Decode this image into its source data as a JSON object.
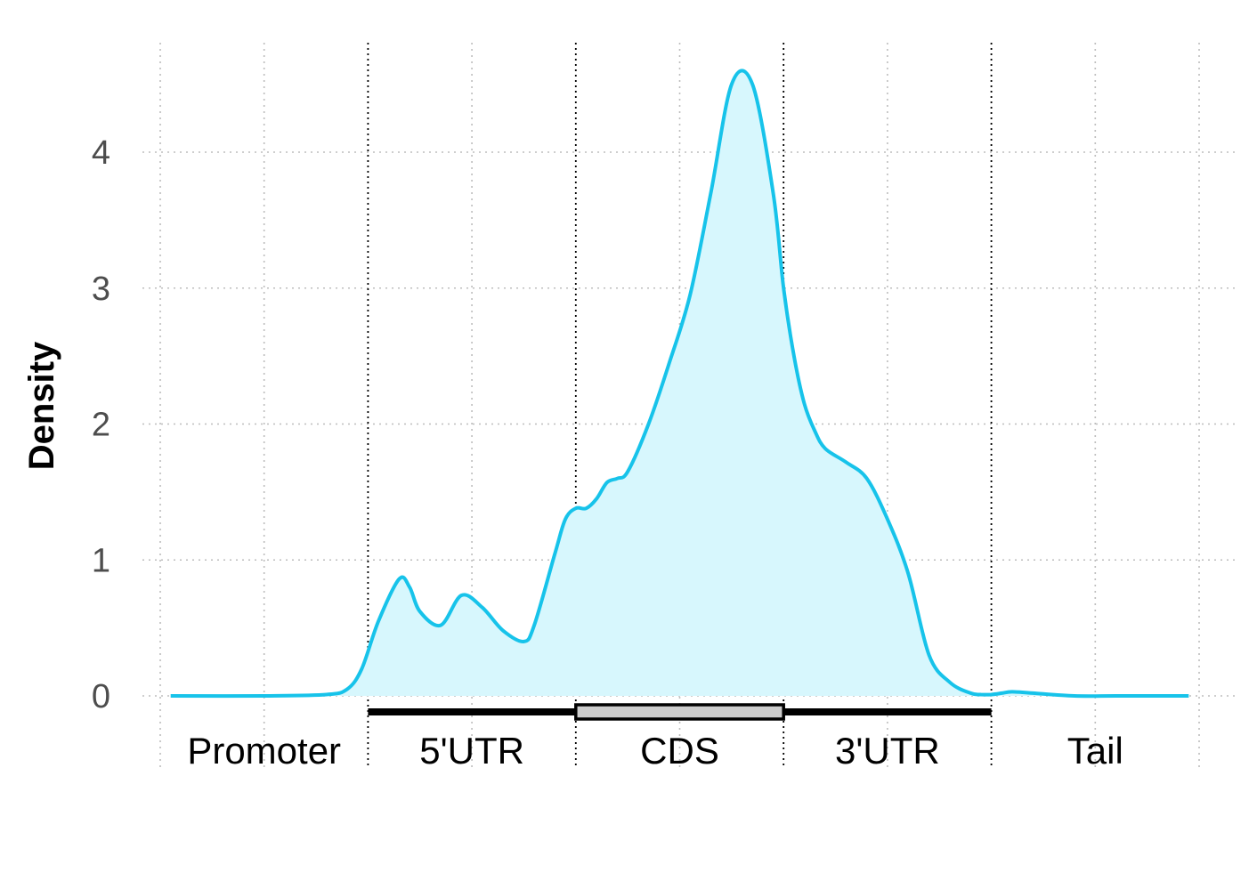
{
  "chart_data": {
    "type": "area",
    "title": "",
    "xlabel": "",
    "ylabel": "Density",
    "xlim": [
      0,
      5
    ],
    "ylim": [
      -0.1,
      4.8
    ],
    "yticks": [
      0,
      1,
      2,
      3,
      4
    ],
    "grid": true,
    "legend": "none",
    "regions": [
      {
        "label": "Promoter",
        "start": 0,
        "end": 1
      },
      {
        "label": "5'UTR",
        "start": 1,
        "end": 2
      },
      {
        "label": "CDS",
        "start": 2,
        "end": 3
      },
      {
        "label": "3'UTR",
        "start": 3,
        "end": 4
      },
      {
        "label": "Tail",
        "start": 4,
        "end": 5
      }
    ],
    "series": [
      {
        "x": [
          0.05,
          0.5,
          0.8,
          0.9,
          0.97,
          1.05,
          1.15,
          1.2,
          1.25,
          1.35,
          1.45,
          1.55,
          1.65,
          1.75,
          1.8,
          1.9,
          1.95,
          2.0,
          2.05,
          2.1,
          2.15,
          2.2,
          2.25,
          2.35,
          2.45,
          2.55,
          2.65,
          2.75,
          2.85,
          2.95,
          3.0,
          3.05,
          3.1,
          3.15,
          3.2,
          3.3,
          3.4,
          3.5,
          3.6,
          3.7,
          3.8,
          3.9,
          3.95,
          4.0,
          4.05,
          4.1,
          4.2,
          4.4,
          4.6,
          4.8,
          4.95
        ],
        "values": [
          0,
          0,
          0.01,
          0.05,
          0.2,
          0.55,
          0.86,
          0.8,
          0.62,
          0.52,
          0.74,
          0.65,
          0.48,
          0.4,
          0.52,
          1.05,
          1.3,
          1.38,
          1.38,
          1.45,
          1.57,
          1.6,
          1.65,
          2.0,
          2.45,
          2.95,
          3.7,
          4.5,
          4.5,
          3.7,
          3.0,
          2.5,
          2.15,
          1.95,
          1.82,
          1.72,
          1.6,
          1.3,
          0.9,
          0.3,
          0.1,
          0.02,
          0.01,
          0.01,
          0.02,
          0.03,
          0.02,
          0.0,
          0.0,
          0.0,
          0.0
        ]
      }
    ],
    "colors": {
      "line": "#17c3ea",
      "fill": "#d7f7fd",
      "cds_box": "#cccccc",
      "bar": "#000000"
    }
  }
}
